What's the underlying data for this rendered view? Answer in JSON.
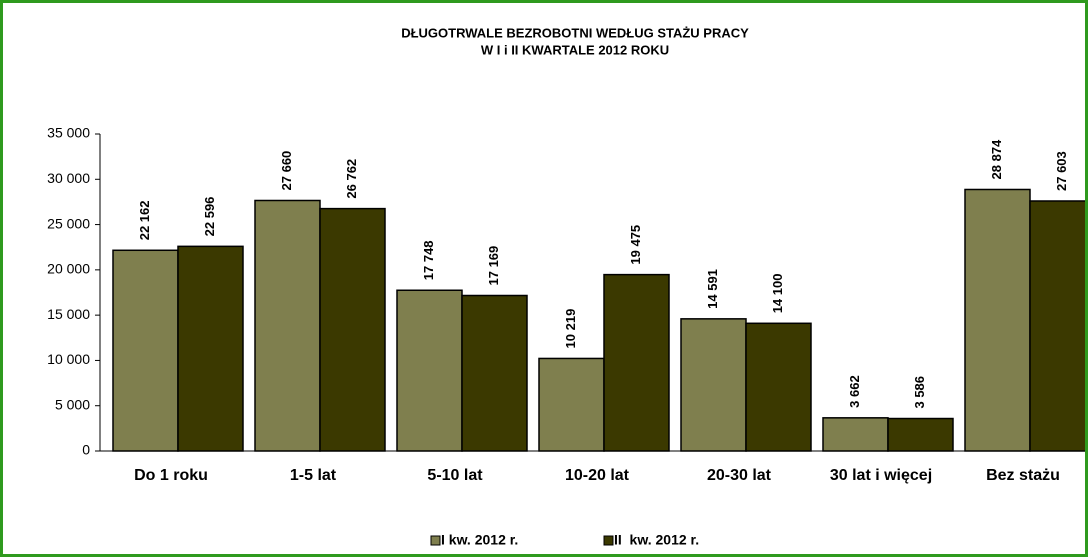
{
  "chart_data": {
    "type": "bar",
    "title": "DŁUGOTRWALE  BEZROBOTNI  WEDŁUG  STAŻU  PRACY",
    "subtitle": "W I i II KWARTALE  2012 ROKU",
    "categories": [
      "Do 1 roku",
      "1-5 lat",
      "5-10 lat",
      "10-20 lat",
      "20-30 lat",
      "30 lat i więcej",
      "Bez stażu"
    ],
    "series": [
      {
        "name": "I kw. 2012 r.",
        "color": "#7f7f4e",
        "values": [
          22162,
          27660,
          17748,
          10219,
          14591,
          3662,
          28874
        ],
        "value_labels": [
          "22 162",
          "27 660",
          "17 748",
          "10 219",
          "14 591",
          "3 662",
          "28 874"
        ]
      },
      {
        "name": "II  kw. 2012 r.",
        "color": "#3b3900",
        "values": [
          22596,
          26762,
          17169,
          19475,
          14100,
          3586,
          27603
        ],
        "value_labels": [
          "22 596",
          "26 762",
          "17 169",
          "19 475",
          "14 100",
          "3 586",
          "27 603"
        ]
      }
    ],
    "ylim": [
      0,
      35000
    ],
    "yticks": [
      0,
      {
        "value": 5000,
        "label": "5 000"
      },
      {
        "value": 10000,
        "label": "10 000"
      },
      {
        "value": 15000,
        "label": "15 000"
      },
      {
        "value": 20000,
        "label": "20 000"
      },
      {
        "value": 25000,
        "label": "25 000"
      },
      {
        "value": 30000,
        "label": "30 000"
      },
      {
        "value": 35000,
        "label": "35 000"
      }
    ],
    "legend": "bottom"
  }
}
